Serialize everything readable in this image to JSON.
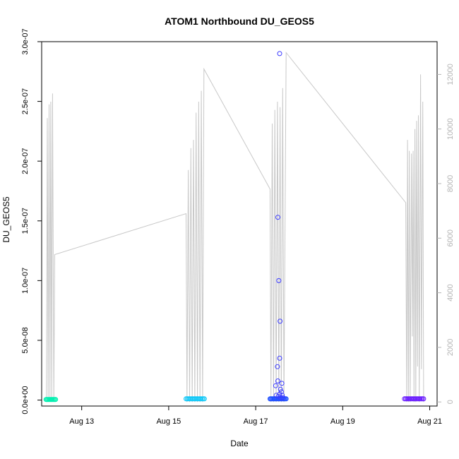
{
  "chart_data": {
    "type": "scatter",
    "title": "ATOM1 Northbound DU_GEOS5",
    "xlabel": "Date",
    "ylabel": "DU_GEOS5",
    "y2label": "",
    "xlim": [
      12.08,
      21.17
    ],
    "ylim": [
      -5e-09,
      3e-07
    ],
    "y2lim": [
      -150,
      13200
    ],
    "x_ticks": [
      {
        "value": 13,
        "label": "Aug 13"
      },
      {
        "value": 15,
        "label": "Aug 15"
      },
      {
        "value": 17,
        "label": "Aug 17"
      },
      {
        "value": 19,
        "label": "Aug 19"
      },
      {
        "value": 21,
        "label": "Aug 21"
      }
    ],
    "y_ticks": [
      {
        "value": 0,
        "label": "0.0e+00"
      },
      {
        "value": 5e-08,
        "label": "5.0e-08"
      },
      {
        "value": 1e-07,
        "label": "1.0e-07"
      },
      {
        "value": 1.5e-07,
        "label": "1.5e-07"
      },
      {
        "value": 2e-07,
        "label": "2.0e-07"
      },
      {
        "value": 2.5e-07,
        "label": "2.5e-07"
      },
      {
        "value": 3e-07,
        "label": "3.0e-07"
      }
    ],
    "y2_ticks": [
      {
        "value": 0,
        "label": "0"
      },
      {
        "value": 2000,
        "label": "2000"
      },
      {
        "value": 4000,
        "label": "4000"
      },
      {
        "value": 6000,
        "label": "6000"
      },
      {
        "value": 8000,
        "label": "8000"
      },
      {
        "value": 10000,
        "label": "10000"
      },
      {
        "value": 12000,
        "label": "12000"
      }
    ],
    "grid": false,
    "altitude_series": {
      "axis": "right",
      "color": "#c8c8c8",
      "points": [
        [
          12.19,
          0
        ],
        [
          12.21,
          10400
        ],
        [
          12.23,
          0
        ],
        [
          12.25,
          10900
        ],
        [
          12.27,
          0
        ],
        [
          12.29,
          11000
        ],
        [
          12.31,
          0
        ],
        [
          12.33,
          11300
        ],
        [
          12.36,
          0
        ],
        [
          12.38,
          5400
        ],
        [
          15.4,
          6900
        ],
        [
          15.42,
          0
        ],
        [
          15.45,
          8500
        ],
        [
          15.48,
          0
        ],
        [
          15.51,
          9300
        ],
        [
          15.54,
          0
        ],
        [
          15.57,
          9600
        ],
        [
          15.6,
          0
        ],
        [
          15.63,
          10600
        ],
        [
          15.66,
          0
        ],
        [
          15.69,
          11000
        ],
        [
          15.72,
          0
        ],
        [
          15.75,
          11400
        ],
        [
          15.78,
          0
        ],
        [
          15.81,
          12200
        ],
        [
          17.33,
          7800
        ],
        [
          17.35,
          0
        ],
        [
          17.38,
          10200
        ],
        [
          17.41,
          0
        ],
        [
          17.44,
          10700
        ],
        [
          17.47,
          0
        ],
        [
          17.5,
          11000
        ],
        [
          17.53,
          0
        ],
        [
          17.56,
          10800
        ],
        [
          17.59,
          0
        ],
        [
          17.62,
          11500
        ],
        [
          17.65,
          0
        ],
        [
          17.7,
          12800
        ],
        [
          20.45,
          7300
        ],
        [
          20.47,
          0
        ],
        [
          20.49,
          9600
        ],
        [
          20.51,
          0
        ],
        [
          20.53,
          9200
        ],
        [
          20.55,
          0
        ],
        [
          20.58,
          9100
        ],
        [
          20.6,
          2400
        ],
        [
          20.62,
          9200
        ],
        [
          20.64,
          0
        ],
        [
          20.66,
          10000
        ],
        [
          20.68,
          0
        ],
        [
          20.7,
          10300
        ],
        [
          20.72,
          1300
        ],
        [
          20.74,
          10500
        ],
        [
          20.76,
          0
        ],
        [
          20.79,
          12000
        ],
        [
          20.81,
          1200
        ],
        [
          20.84,
          11000
        ],
        [
          20.86,
          0
        ]
      ]
    },
    "du_points": {
      "axis": "left",
      "color_scale": [
        "#00ffa8",
        "#00c8ff",
        "#0a3cff",
        "#8000ff"
      ],
      "groups": [
        {
          "x_start": 12.18,
          "x_end": 12.4,
          "count": 12,
          "y": 5e-10,
          "color": "#00f0b0"
        },
        {
          "x_start": 15.4,
          "x_end": 15.82,
          "count": 18,
          "y": 1e-09,
          "color": "#10c8f8"
        },
        {
          "x_start": 17.33,
          "x_end": 17.7,
          "count": 20,
          "y": 1e-09,
          "color": "#2050ff"
        },
        {
          "x_start": 20.42,
          "x_end": 20.86,
          "count": 18,
          "y": 1e-09,
          "color": "#6a1cff"
        }
      ],
      "outliers": [
        {
          "x": 17.55,
          "y": 2.9e-07,
          "color": "#3a3aff"
        },
        {
          "x": 17.51,
          "y": 1.53e-07,
          "color": "#3a3aff"
        },
        {
          "x": 17.53,
          "y": 1e-07,
          "color": "#3a3aff"
        },
        {
          "x": 17.56,
          "y": 6.6e-08,
          "color": "#3a3aff"
        },
        {
          "x": 17.55,
          "y": 3.5e-08,
          "color": "#3a3aff"
        },
        {
          "x": 17.5,
          "y": 2.8e-08,
          "color": "#3a3aff"
        },
        {
          "x": 17.51,
          "y": 1.6e-08,
          "color": "#3a3aff"
        },
        {
          "x": 17.6,
          "y": 1.4e-08,
          "color": "#3a3aff"
        },
        {
          "x": 17.46,
          "y": 1.2e-08,
          "color": "#3a3aff"
        },
        {
          "x": 17.57,
          "y": 9e-09,
          "color": "#3a3aff"
        },
        {
          "x": 17.59,
          "y": 7e-09,
          "color": "#3a3aff"
        },
        {
          "x": 17.55,
          "y": 5e-09,
          "color": "#3a3aff"
        },
        {
          "x": 17.47,
          "y": 4e-09,
          "color": "#3a3aff"
        },
        {
          "x": 17.61,
          "y": 4e-09,
          "color": "#3a3aff"
        },
        {
          "x": 17.52,
          "y": 3e-09,
          "color": "#3a3aff"
        },
        {
          "x": 17.58,
          "y": 2e-09,
          "color": "#3a3aff"
        },
        {
          "x": 17.63,
          "y": 2e-09,
          "color": "#3a3aff"
        }
      ]
    }
  }
}
